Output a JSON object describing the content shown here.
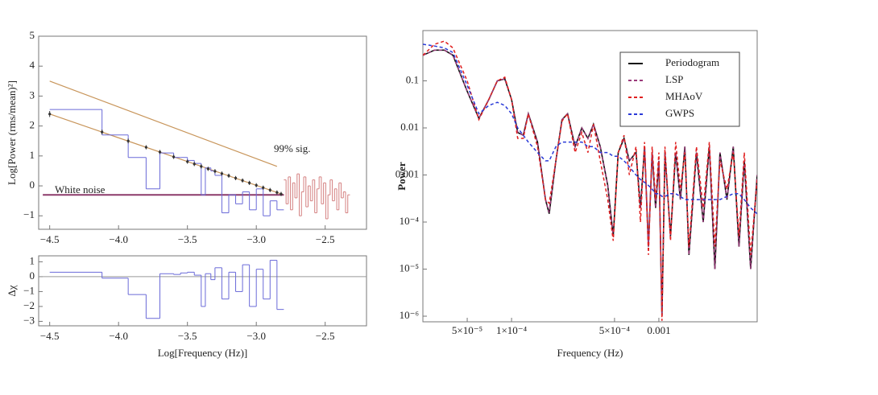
{
  "chart_data": [
    {
      "type": "step",
      "y_label": "Log[Power (rms/mean)²]",
      "annotations": [
        "99% sig.",
        "White noise"
      ],
      "xlim": [
        -4.58,
        -2.2
      ],
      "ylim": [
        -1.45,
        5
      ],
      "xticks": [
        {
          "value": -4.5,
          "label": "−4.5"
        },
        {
          "value": -4.0,
          "label": "−4.0"
        },
        {
          "value": -3.5,
          "label": "−3.5"
        },
        {
          "value": -3.0,
          "label": "−3.0"
        },
        {
          "value": -2.5,
          "label": "−2.5"
        }
      ],
      "yticks": [
        5,
        4,
        3,
        2,
        1,
        0,
        {
          "value": -1,
          "label": "−1"
        }
      ],
      "series": [
        {
          "color": "#6a6ad8",
          "bins": [
            -4.5,
            -4.12,
            -3.93,
            -3.8,
            -3.7,
            -3.6,
            -3.55,
            -3.5,
            -3.45,
            -3.4,
            -3.37,
            -3.33,
            -3.3,
            -3.25,
            -3.2,
            -3.15,
            -3.1,
            -3.05,
            -3.0,
            -2.95,
            -2.9,
            -2.85,
            -2.8
          ],
          "values": [
            2.55,
            1.7,
            0.95,
            -0.1,
            1.1,
            0.95,
            0.95,
            0.85,
            0.75,
            -0.3,
            0.6,
            0.5,
            0.35,
            -0.9,
            -0.3,
            -0.6,
            -0.2,
            -0.8,
            -0.1,
            -1.0,
            -0.5,
            -0.8
          ]
        },
        {
          "color": "#d48080",
          "bins": [
            -2.8,
            -2.784,
            -2.768,
            -2.752,
            -2.736,
            -2.72,
            -2.704,
            -2.688,
            -2.672,
            -2.656,
            -2.64,
            -2.624,
            -2.608,
            -2.592,
            -2.576,
            -2.56,
            -2.544,
            -2.528,
            -2.512,
            -2.496,
            -2.48,
            -2.464,
            -2.448,
            -2.432,
            -2.416,
            -2.4,
            -2.384,
            -2.368,
            -2.352,
            -2.336,
            -2.32
          ],
          "values": [
            0.2,
            -0.6,
            0.3,
            -0.8,
            0.1,
            -0.4,
            0.4,
            -1.0,
            -0.2,
            0.3,
            -0.7,
            0.0,
            -0.5,
            0.2,
            -0.9,
            -0.1,
            0.3,
            -0.6,
            0.1,
            -1.1,
            -0.3,
            0.2,
            -0.5,
            -0.1,
            -0.8,
            0.1,
            -0.4,
            -0.2,
            -0.9,
            -0.3
          ]
        }
      ],
      "points": {
        "color": "#333333",
        "x": [
          -4.5,
          -4.12,
          -3.93,
          -3.8,
          -3.7,
          -3.6,
          -3.5,
          -3.45,
          -3.4,
          -3.35,
          -3.3,
          -3.25,
          -3.2,
          -3.15,
          -3.1,
          -3.05,
          -3.0,
          -2.95,
          -2.9,
          -2.85,
          -2.82
        ],
        "values": [
          2.4,
          1.8,
          1.5,
          1.29,
          1.13,
          0.97,
          0.81,
          0.73,
          0.65,
          0.57,
          0.49,
          0.41,
          0.34,
          0.26,
          0.18,
          0.1,
          0.02,
          -0.06,
          -0.14,
          -0.22,
          -0.27
        ],
        "errors": [
          0.1,
          0.08,
          0.08,
          0.07,
          0.07,
          0.07,
          0.07,
          0.07,
          0.07,
          0.07,
          0.07,
          0.07,
          0.07,
          0.07,
          0.07,
          0.07,
          0.07,
          0.07,
          0.07,
          0.07,
          0.07
        ]
      },
      "lines": [
        {
          "color": "#c8955a",
          "x": [
            -4.5,
            -2.85
          ],
          "values": [
            3.5,
            0.65
          ]
        },
        {
          "color": "#c8955a",
          "x": [
            -4.5,
            -2.8
          ],
          "values": [
            2.4,
            -0.3
          ]
        },
        {
          "color": "#8b3a6a",
          "x": [
            -4.55,
            -2.8
          ],
          "values": [
            -0.3,
            -0.3
          ]
        }
      ]
    },
    {
      "type": "step",
      "x_label": "Log[Frequency (Hz)]",
      "y_label": "Δχ",
      "xlim": [
        -4.58,
        -2.2
      ],
      "ylim": [
        -3.3,
        1.4
      ],
      "xticks": [
        {
          "value": -4.5,
          "label": "−4.5"
        },
        {
          "value": -4.0,
          "label": "−4.0"
        },
        {
          "value": -3.5,
          "label": "−3.5"
        },
        {
          "value": -3.0,
          "label": "−3.0"
        },
        {
          "value": -2.5,
          "label": "−2.5"
        }
      ],
      "yticks": [
        1,
        0,
        {
          "value": -1,
          "label": "−1"
        },
        {
          "value": -2,
          "label": "−2"
        },
        {
          "value": -3,
          "label": "−3"
        }
      ],
      "series": [
        {
          "color": "#6a6ad8",
          "bins": [
            -4.5,
            -4.12,
            -3.93,
            -3.8,
            -3.7,
            -3.6,
            -3.55,
            -3.5,
            -3.45,
            -3.4,
            -3.37,
            -3.33,
            -3.3,
            -3.25,
            -3.2,
            -3.15,
            -3.1,
            -3.05,
            -3.0,
            -2.95,
            -2.9,
            -2.85,
            -2.8
          ],
          "values": [
            0.3,
            -0.1,
            -1.2,
            -2.8,
            0.2,
            0.15,
            0.25,
            0.3,
            0.1,
            -2.0,
            0.2,
            -0.2,
            0.6,
            -1.5,
            0.3,
            -1.0,
            0.8,
            -2.0,
            0.5,
            -1.5,
            1.1,
            -2.2
          ]
        }
      ],
      "zero_line": 0
    },
    {
      "type": "line",
      "x_label": "Frequency (Hz)",
      "y_label": "Power",
      "log_x": true,
      "log_y": true,
      "legend": "upper right",
      "xlim": [
        2.5e-05,
        0.00465
      ],
      "ylim": [
        7.6e-07,
        1.17
      ],
      "xticks": [
        {
          "value": 5e-05,
          "label": "5×10⁻⁵"
        },
        {
          "value": 0.0001,
          "label": "1×10⁻⁴"
        },
        {
          "value": 0.0005,
          "label": "5×10⁻⁴"
        },
        0.001
      ],
      "yticks": [
        0.1,
        0.01,
        0.001,
        {
          "value": 0.0001,
          "label": "10⁻⁴"
        },
        {
          "value": 1e-05,
          "label": "10⁻⁵"
        },
        {
          "value": 1e-06,
          "label": "10⁻⁶"
        }
      ],
      "x": [
        2.5e-05,
        3e-05,
        3.5e-05,
        4e-05,
        5e-05,
        6e-05,
        7e-05,
        8e-05,
        9e-05,
        0.0001,
        0.00011,
        0.00012,
        0.00013,
        0.00015,
        0.00017,
        0.00018,
        0.0002,
        0.00022,
        0.00024,
        0.00027,
        0.0003,
        0.00033,
        0.00036,
        0.0004,
        0.00045,
        0.00049,
        0.00053,
        0.00058,
        0.00063,
        0.0007,
        0.00075,
        0.0008,
        0.00085,
        0.0009,
        0.00095,
        0.001,
        0.00105,
        0.0011,
        0.0012,
        0.0013,
        0.0014,
        0.0015,
        0.0016,
        0.0018,
        0.002,
        0.0022,
        0.0024,
        0.0026,
        0.0029,
        0.0032,
        0.0035,
        0.0038,
        0.0042,
        0.00465
      ],
      "series": [
        {
          "name": "Periodogram",
          "color": "#111111",
          "dashed": false,
          "values": [
            0.35,
            0.45,
            0.45,
            0.35,
            0.06,
            0.016,
            0.04,
            0.1,
            0.11,
            0.04,
            0.008,
            0.007,
            0.02,
            0.005,
            0.0003,
            0.00015,
            0.002,
            0.015,
            0.02,
            0.004,
            0.01,
            0.006,
            0.012,
            0.004,
            0.0006,
            5e-05,
            0.003,
            0.006,
            0.002,
            0.003,
            0.0002,
            0.004,
            3e-05,
            0.003,
            0.0002,
            0.002,
            1e-06,
            0.003,
            5e-05,
            0.003,
            0.0003,
            0.004,
            2e-05,
            0.003,
            0.0001,
            0.004,
            1e-05,
            0.003,
            0.0003,
            0.004,
            3e-05,
            0.002,
            1e-05,
            0.001
          ]
        },
        {
          "name": "LSP",
          "color": "#9a3a7a",
          "dashed": true,
          "values": [
            0.35,
            0.45,
            0.45,
            0.35,
            0.06,
            0.016,
            0.04,
            0.1,
            0.11,
            0.04,
            0.008,
            0.007,
            0.02,
            0.005,
            0.0003,
            0.00016,
            0.002,
            0.015,
            0.02,
            0.004,
            0.01,
            0.006,
            0.012,
            0.004,
            0.0006,
            5e-05,
            0.003,
            0.006,
            0.002,
            0.003,
            0.0002,
            0.004,
            3e-05,
            0.003,
            0.0002,
            0.002,
            1e-06,
            0.003,
            5e-05,
            0.003,
            0.0003,
            0.004,
            2e-05,
            0.003,
            0.0001,
            0.004,
            1e-05,
            0.003,
            0.0003,
            0.004,
            3e-05,
            0.002,
            1e-05,
            0.001
          ]
        },
        {
          "name": "MHAoV",
          "color": "#e02020",
          "dashed": true,
          "values": [
            0.35,
            0.6,
            0.7,
            0.5,
            0.1,
            0.015,
            0.04,
            0.1,
            0.12,
            0.04,
            0.006,
            0.006,
            0.02,
            0.004,
            0.0003,
            0.00025,
            0.002,
            0.014,
            0.02,
            0.003,
            0.008,
            0.003,
            0.012,
            0.002,
            0.0003,
            4e-05,
            0.003,
            0.007,
            0.001,
            0.004,
            0.0001,
            0.005,
            2e-05,
            0.004,
            0.0003,
            0.003,
            8e-07,
            0.004,
            4e-05,
            0.005,
            0.0005,
            0.003,
            3e-05,
            0.004,
            0.0002,
            0.005,
            3e-05,
            0.002,
            0.0005,
            0.003,
            5e-05,
            0.003,
            2e-05,
            0.0008
          ]
        },
        {
          "name": "GWPS",
          "color": "#2a3ad8",
          "dashed": true,
          "values": [
            0.6,
            0.55,
            0.5,
            0.4,
            0.08,
            0.02,
            0.03,
            0.035,
            0.03,
            0.02,
            0.01,
            0.007,
            0.005,
            0.003,
            0.002,
            0.002,
            0.004,
            0.005,
            0.005,
            0.005,
            0.005,
            0.004,
            0.004,
            0.003,
            0.003,
            0.0025,
            0.0025,
            0.002,
            0.0015,
            0.001,
            0.0008,
            0.0007,
            0.0006,
            0.0005,
            0.0004,
            0.0004,
            0.00035,
            0.00035,
            0.0004,
            0.0004,
            0.00035,
            0.0003,
            0.0003,
            0.0003,
            0.0003,
            0.0003,
            0.0003,
            0.0003,
            0.00035,
            0.0004,
            0.0004,
            0.0003,
            0.0002,
            0.00015
          ]
        }
      ]
    }
  ]
}
